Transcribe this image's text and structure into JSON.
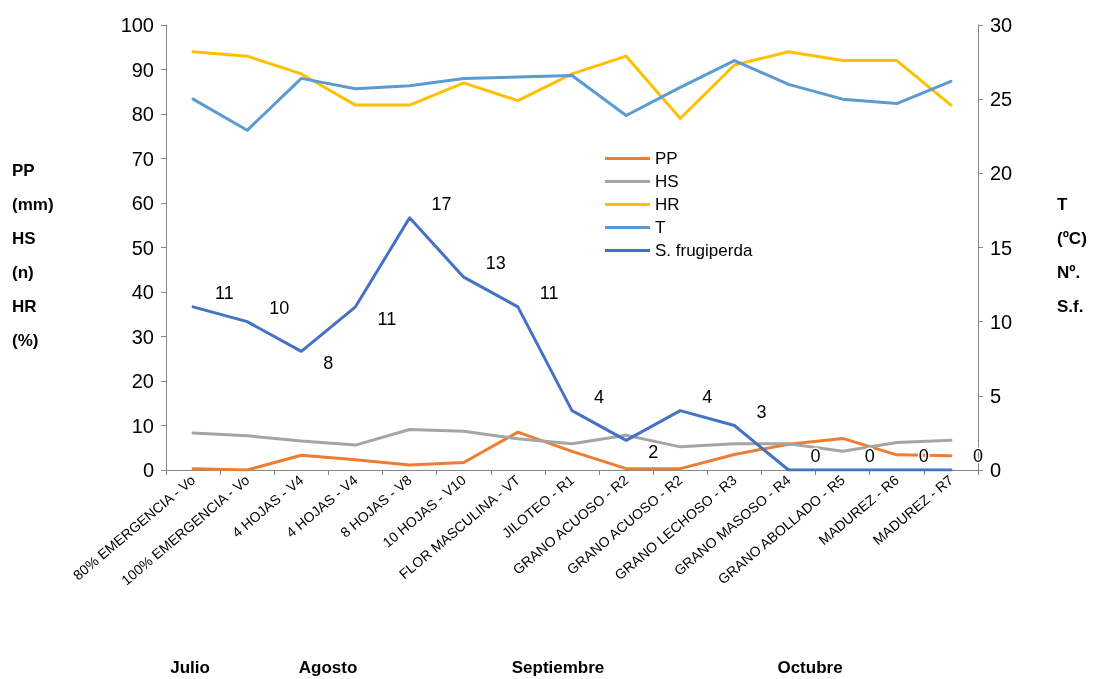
{
  "chart_data": {
    "type": "line",
    "categories": [
      "80% EMERGENCIA - Vo",
      "100% EMERGENCIA - Vo",
      "4 HOJAS - V4",
      "4 HOJAS - V4",
      "8 HOJAS - V8",
      "10 HOJAS - V10",
      "FLOR MASCULINA - VT",
      "JILOTEO - R1",
      "GRANO ACUOSO - R2",
      "GRANO ACUOSO - R2",
      "GRANO LECHOSO - R3",
      "GRANO MASOSO - R4",
      "GRANO ABOLLADO - R5",
      "MADUREZ - R6",
      "MADUREZ - R7"
    ],
    "series": [
      {
        "name": "PP",
        "color": "#ed7d31",
        "values": [
          0.3,
          0,
          3.3,
          2.3,
          1.1,
          1.7,
          8.5,
          4.2,
          0.3,
          0.3,
          3.5,
          5.8,
          7.1,
          3.4,
          3.2
        ]
      },
      {
        "name": "HS",
        "color": "#a5a5a5",
        "values": [
          8.3,
          7.7,
          6.5,
          5.6,
          9.1,
          8.7,
          7,
          5.9,
          7.8,
          5.2,
          5.9,
          5.9,
          4.2,
          6.2,
          6.7
        ]
      },
      {
        "name": "HR",
        "color": "#ffc000",
        "values": [
          94,
          93,
          89,
          82,
          82,
          87,
          83,
          89,
          93,
          79,
          91,
          94,
          92,
          92,
          82
        ]
      },
      {
        "name": "T",
        "color": "#5b9bd5",
        "axis": "y2",
        "values": [
          25,
          22.9,
          26.4,
          25.7,
          25.9,
          26.4,
          26.5,
          26.6,
          23.9,
          25.8,
          27.6,
          26,
          25,
          24.7,
          26.2
        ]
      },
      {
        "name": "S. frugiperda",
        "color": "#4472c4",
        "axis": "y2",
        "values": [
          11,
          10,
          8,
          11,
          17,
          13,
          11,
          4,
          2,
          4,
          3,
          0,
          0,
          0,
          0
        ],
        "value_labels": [
          "11",
          "10",
          "8",
          "11",
          "17",
          "13",
          "11",
          "4",
          "2",
          "4",
          "3",
          "0",
          "0",
          "0",
          "0"
        ]
      }
    ],
    "ylabel": "PP\n(mm)\nHS\n(n)\nHR\n(%)",
    "y2label": "T\n(ºC)\nNº.\nS.f.",
    "ylim": [
      0,
      100
    ],
    "yticks": [
      0,
      10,
      20,
      30,
      40,
      50,
      60,
      70,
      80,
      90,
      100
    ],
    "y2lim": [
      0,
      30
    ],
    "y2ticks": [
      0,
      5,
      10,
      15,
      20,
      25,
      30
    ],
    "annotations": [
      "Julio",
      "Agosto",
      "Septiembre",
      "Octubre"
    ],
    "legend": "center",
    "grid": false,
    "marker": "none",
    "line_style": "solid"
  }
}
